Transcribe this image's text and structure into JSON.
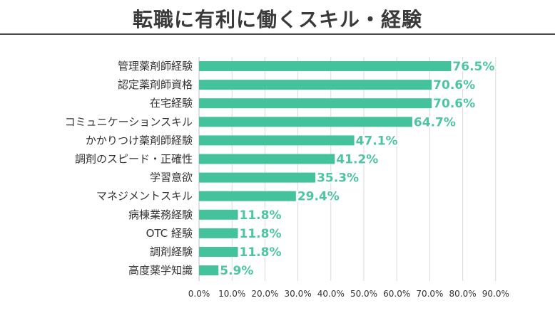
{
  "chart_data": {
    "type": "bar",
    "orientation": "horizontal",
    "title": "転職に有利に働くスキル・経験",
    "categories": [
      "管理薬剤師経験",
      "認定薬剤師資格",
      "在宅経験",
      "コミュニケーションスキル",
      "かかりつけ薬剤師経験",
      "調剤のスピード・正確性",
      "学習意欲",
      "マネジメントスキル",
      "病棟業務経験",
      "OTC 経験",
      "調剤経験",
      "高度薬学知識"
    ],
    "values": [
      76.5,
      70.6,
      70.6,
      64.7,
      47.1,
      41.2,
      35.3,
      29.4,
      11.8,
      11.8,
      11.8,
      5.9
    ],
    "value_labels": [
      "76.5%",
      "70.6%",
      "70.6%",
      "64.7%",
      "47.1%",
      "41.2%",
      "35.3%",
      "29.4%",
      "11.8%",
      "11.8%",
      "11.8%",
      "5.9%"
    ],
    "xlim": [
      0,
      90
    ],
    "xticks": [
      0,
      10,
      20,
      30,
      40,
      50,
      60,
      70,
      80,
      90
    ],
    "xtick_labels": [
      "0.0%",
      "10.0%",
      "20.0%",
      "30.0%",
      "40.0%",
      "50.0%",
      "60.0%",
      "70.0%",
      "80.0%",
      "90.0%"
    ],
    "grid": "vertical",
    "bar_color": "#43c29c",
    "label_color": "#4cc5a3"
  }
}
